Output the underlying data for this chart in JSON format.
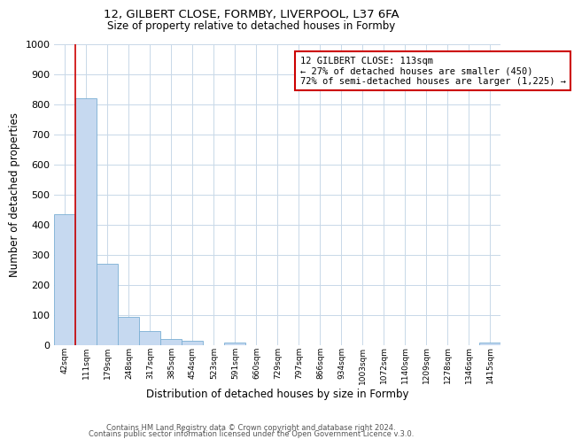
{
  "title1": "12, GILBERT CLOSE, FORMBY, LIVERPOOL, L37 6FA",
  "title2": "Size of property relative to detached houses in Formby",
  "xlabel": "Distribution of detached houses by size in Formby",
  "ylabel": "Number of detached properties",
  "bar_labels": [
    "42sqm",
    "111sqm",
    "179sqm",
    "248sqm",
    "317sqm",
    "385sqm",
    "454sqm",
    "523sqm",
    "591sqm",
    "660sqm",
    "729sqm",
    "797sqm",
    "866sqm",
    "934sqm",
    "1003sqm",
    "1072sqm",
    "1140sqm",
    "1209sqm",
    "1278sqm",
    "1346sqm",
    "1415sqm"
  ],
  "bar_values": [
    435,
    820,
    270,
    93,
    48,
    22,
    14,
    0,
    10,
    0,
    0,
    0,
    0,
    0,
    0,
    0,
    0,
    0,
    0,
    0,
    10
  ],
  "bar_color": "#c6d9f0",
  "bar_edge_color": "#7bafd4",
  "ylim": [
    0,
    1000
  ],
  "yticks": [
    0,
    100,
    200,
    300,
    400,
    500,
    600,
    700,
    800,
    900,
    1000
  ],
  "property_line_color": "#cc0000",
  "annotation_title": "12 GILBERT CLOSE: 113sqm",
  "annotation_line1": "← 27% of detached houses are smaller (450)",
  "annotation_line2": "72% of semi-detached houses are larger (1,225) →",
  "annotation_box_color": "#cc0000",
  "footer1": "Contains HM Land Registry data © Crown copyright and database right 2024.",
  "footer2": "Contains public sector information licensed under the Open Government Licence v.3.0.",
  "bg_color": "#ffffff",
  "grid_color": "#c8d8e8",
  "fig_bg": "#ffffff"
}
